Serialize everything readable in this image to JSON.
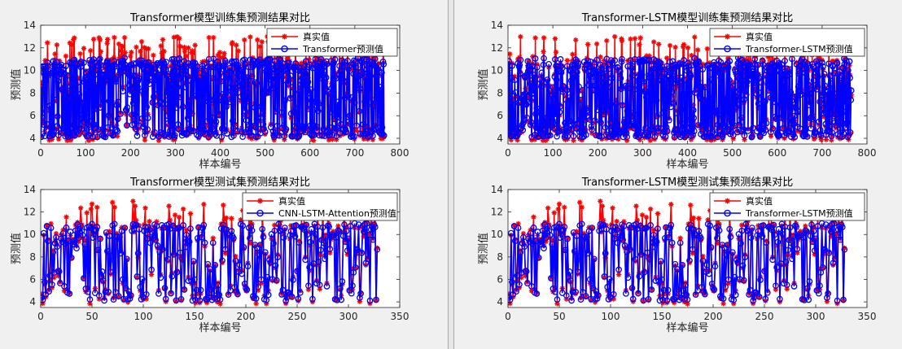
{
  "colors": {
    "true_series": "#ff0000",
    "pred_series": "#0000ff",
    "axes_bg": "#ffffff",
    "figure_bg": "#f0f0f0"
  },
  "common": {
    "xlabel": "样本编号",
    "ylabel": "预测值",
    "legend_true": "真实值"
  },
  "chart_data": [
    {
      "id": "tl",
      "type": "line",
      "title": "Transformer模型训练集预测结果对比",
      "xlabel": "样本编号",
      "ylabel": "预测值",
      "xlim": [
        0,
        800
      ],
      "ylim": [
        3.5,
        14
      ],
      "xticks": [
        0,
        100,
        200,
        300,
        400,
        500,
        600,
        700,
        800
      ],
      "yticks": [
        4,
        6,
        8,
        10,
        12,
        14
      ],
      "n": 765,
      "seed": 11,
      "legend_position": "top-right",
      "series": [
        {
          "name": "真实值",
          "marker": "asterisk"
        },
        {
          "name": "Transformer预测值",
          "marker": "circle"
        }
      ]
    },
    {
      "id": "tr",
      "type": "line",
      "title": "Transformer-LSTM模型训练集预测结果对比",
      "xlabel": "样本编号",
      "ylabel": "预测值",
      "xlim": [
        0,
        800
      ],
      "ylim": [
        3.5,
        14
      ],
      "xticks": [
        0,
        100,
        200,
        300,
        400,
        500,
        600,
        700,
        800
      ],
      "yticks": [
        4,
        6,
        8,
        10,
        12,
        14
      ],
      "n": 765,
      "seed": 23,
      "legend_position": "top-right",
      "series": [
        {
          "name": "真实值",
          "marker": "asterisk"
        },
        {
          "name": "Transformer-LSTM预测值",
          "marker": "circle"
        }
      ]
    },
    {
      "id": "bl",
      "type": "line",
      "title": "Transformer模型测试集预测结果对比",
      "xlabel": "样本编号",
      "ylabel": "预测值",
      "xlim": [
        0,
        350
      ],
      "ylim": [
        3.5,
        14
      ],
      "xticks": [
        0,
        50,
        100,
        150,
        200,
        250,
        300,
        350
      ],
      "yticks": [
        4,
        6,
        8,
        10,
        12,
        14
      ],
      "n": 328,
      "seed": 37,
      "legend_position": "top-right",
      "series": [
        {
          "name": "真实值",
          "marker": "asterisk"
        },
        {
          "name": "CNN-LSTM-Attention预测值",
          "marker": "circle"
        }
      ]
    },
    {
      "id": "br",
      "type": "line",
      "title": "Transformer-LSTM模型测试集预测结果对比",
      "xlabel": "样本编号",
      "ylabel": "预测值",
      "xlim": [
        0,
        350
      ],
      "ylim": [
        3.5,
        14
      ],
      "xticks": [
        0,
        50,
        100,
        150,
        200,
        250,
        300,
        350
      ],
      "yticks": [
        4,
        6,
        8,
        10,
        12,
        14
      ],
      "n": 328,
      "seed": 37,
      "legend_position": "top-right",
      "series": [
        {
          "name": "真实值",
          "marker": "asterisk"
        },
        {
          "name": "Transformer-LSTM预测值",
          "marker": "circle"
        }
      ]
    }
  ]
}
